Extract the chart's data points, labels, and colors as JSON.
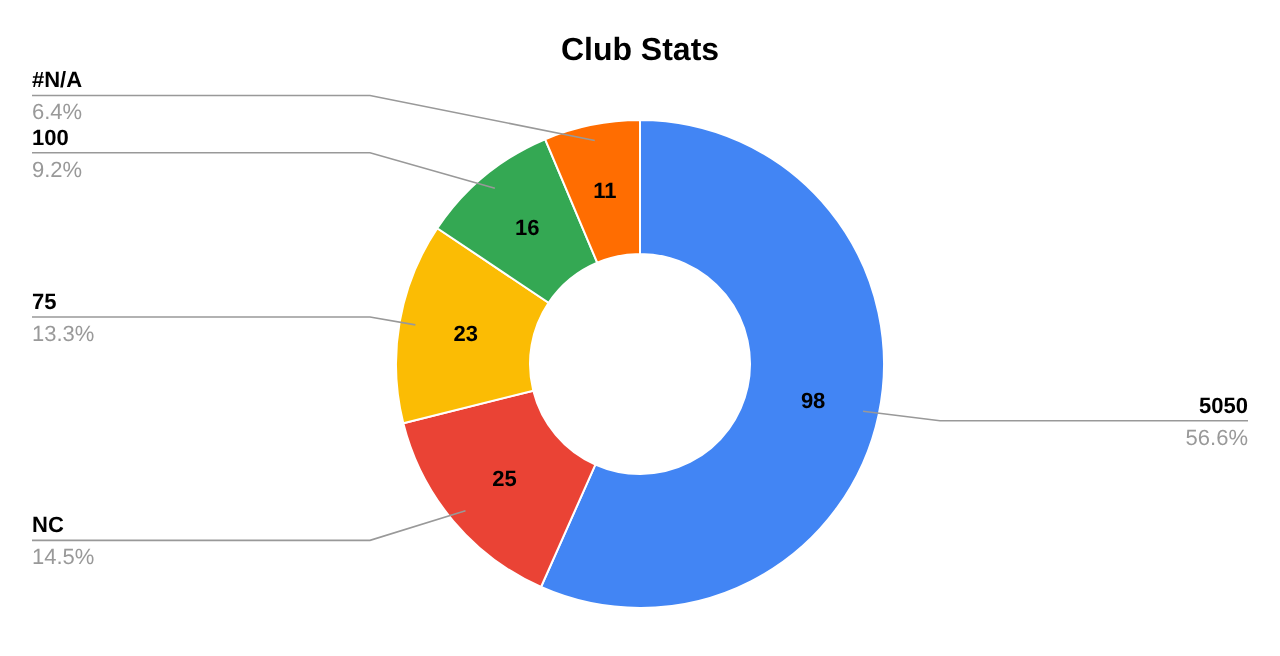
{
  "chart_data": {
    "type": "donut",
    "title": "Club Stats",
    "categories": [
      "5050",
      "NC",
      "75",
      "100",
      "#N/A"
    ],
    "values": [
      98,
      25,
      23,
      16,
      11
    ],
    "colors": [
      "#4285f4",
      "#ea4335",
      "#fbbc04",
      "#34a853",
      "#ff6d01"
    ],
    "annotations": [
      "56.6%",
      "14.5%",
      "13.3%",
      "9.2%",
      "6.4%"
    ],
    "data_labels": true
  }
}
